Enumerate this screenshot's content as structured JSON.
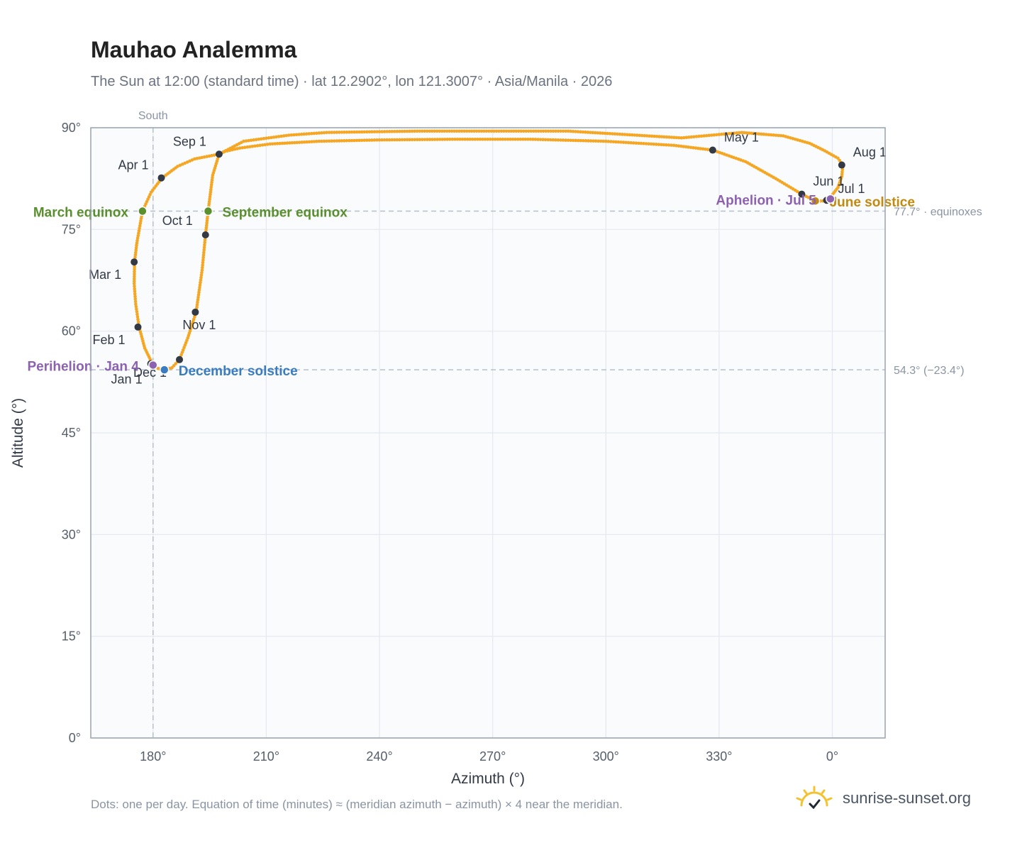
{
  "title": "Mauhao Analemma",
  "subtitle": "The Sun at 12:00 (standard time) · lat 12.2902°, lon 121.3007° · Asia/Manila · 2026",
  "footnote": "Dots: one per day. Equation of time (minutes) ≈ (meridian azimuth − azimuth) × 4 near the meridian.",
  "brand": {
    "name": "sunrise-sunset.org",
    "icon": "sun-logo-icon"
  },
  "colors": {
    "curve": "#f5a623",
    "month": "#333a45",
    "equinox": "#5a8f2e",
    "june": "#c28a0e",
    "december": "#3a7cc0",
    "apsis": "#8c62b0",
    "axis": "#555e6b",
    "grid": "#e5e8ee",
    "guide": "#b8c0cb",
    "plot_bg": "#f9fbfd",
    "frame": "#98a2b0"
  },
  "chart_data": {
    "type": "scatter",
    "xlabel": "Azimuth (°)",
    "ylabel": "Altitude (°)",
    "x_ticks": [
      {
        "az": 180,
        "label": "180°"
      },
      {
        "az": 210,
        "label": "210°"
      },
      {
        "az": 240,
        "label": "240°"
      },
      {
        "az": 270,
        "label": "270°"
      },
      {
        "az": 300,
        "label": "300°"
      },
      {
        "az": 330,
        "label": "330°"
      },
      {
        "az": 360,
        "label": "0°"
      }
    ],
    "y_ticks": [
      {
        "alt": 0,
        "label": "0°"
      },
      {
        "alt": 15,
        "label": "15°"
      },
      {
        "alt": 30,
        "label": "30°"
      },
      {
        "alt": 45,
        "label": "45°"
      },
      {
        "alt": 60,
        "label": "60°"
      },
      {
        "alt": 75,
        "label": "75°"
      },
      {
        "alt": 90,
        "label": "90°"
      }
    ],
    "xlim": [
      163.5,
      374
    ],
    "ylim": [
      0,
      90
    ],
    "grid": true,
    "meridian": {
      "az": 180,
      "label": "South"
    },
    "ref_lines": [
      {
        "alt": 77.7,
        "label": "77.7° · equinoxes"
      },
      {
        "alt": 54.3,
        "label": "54.3° (−23.4°)"
      }
    ],
    "curve_path": [
      {
        "az": 180.0,
        "alt": 55.0
      },
      {
        "az": 177.8,
        "alt": 57.5
      },
      {
        "az": 176.3,
        "alt": 60.6
      },
      {
        "az": 175.4,
        "alt": 64.0
      },
      {
        "az": 175.0,
        "alt": 67.0
      },
      {
        "az": 175.1,
        "alt": 70.2
      },
      {
        "az": 175.7,
        "alt": 73.0
      },
      {
        "az": 177.2,
        "alt": 77.7
      },
      {
        "az": 179.5,
        "alt": 80.5
      },
      {
        "az": 182.4,
        "alt": 82.6
      },
      {
        "az": 186.5,
        "alt": 84.3
      },
      {
        "az": 191.0,
        "alt": 85.4
      },
      {
        "az": 197.5,
        "alt": 86.1
      },
      {
        "az": 204.0,
        "alt": 88.0
      },
      {
        "az": 216.0,
        "alt": 88.9
      },
      {
        "az": 226.0,
        "alt": 89.3
      },
      {
        "az": 250.0,
        "alt": 89.5
      },
      {
        "az": 290.0,
        "alt": 89.5
      },
      {
        "az": 320.0,
        "alt": 88.5
      },
      {
        "az": 336.0,
        "alt": 89.3
      },
      {
        "az": 347.0,
        "alt": 88.8
      },
      {
        "az": 354.0,
        "alt": 87.7
      },
      {
        "az": 358.0,
        "alt": 86.6
      },
      {
        "az": 361.5,
        "alt": 85.5
      },
      {
        "az": 362.8,
        "alt": 84.5
      },
      {
        "az": 362.5,
        "alt": 82.8
      },
      {
        "az": 361.5,
        "alt": 81.2
      },
      {
        "az": 359.3,
        "alt": 79.6
      },
      {
        "az": 357.5,
        "alt": 79.2
      },
      {
        "az": 355.5,
        "alt": 79.2
      },
      {
        "az": 351.9,
        "alt": 80.2
      },
      {
        "az": 345.0,
        "alt": 82.5
      },
      {
        "az": 337.0,
        "alt": 85.0
      },
      {
        "az": 328.3,
        "alt": 86.7
      },
      {
        "az": 318.0,
        "alt": 87.4
      },
      {
        "az": 300.0,
        "alt": 88.0
      },
      {
        "az": 280.0,
        "alt": 88.3
      },
      {
        "az": 260.0,
        "alt": 88.3
      },
      {
        "az": 240.0,
        "alt": 88.2
      },
      {
        "az": 224.0,
        "alt": 88.0
      },
      {
        "az": 211.0,
        "alt": 87.6
      },
      {
        "az": 203.0,
        "alt": 87.0
      },
      {
        "az": 199.0,
        "alt": 86.5
      },
      {
        "az": 197.5,
        "alt": 86.1
      },
      {
        "az": 195.8,
        "alt": 83.0
      },
      {
        "az": 194.6,
        "alt": 77.7
      },
      {
        "az": 193.9,
        "alt": 74.2
      },
      {
        "az": 193.0,
        "alt": 69.0
      },
      {
        "az": 191.4,
        "alt": 62.8
      },
      {
        "az": 189.2,
        "alt": 59.0
      },
      {
        "az": 187.0,
        "alt": 55.8
      },
      {
        "az": 185.0,
        "alt": 54.6
      },
      {
        "az": 183.0,
        "alt": 54.3
      },
      {
        "az": 181.3,
        "alt": 54.5
      },
      {
        "az": 180.0,
        "alt": 55.0
      }
    ],
    "month_points": [
      {
        "label": "Jan 1",
        "az": 179.4,
        "alt": 55.2,
        "lx": -12,
        "ly": 28,
        "anchor": "end"
      },
      {
        "label": "Feb 1",
        "az": 176.0,
        "alt": 60.6,
        "lx": -18,
        "ly": 24,
        "anchor": "end"
      },
      {
        "label": "Mar 1",
        "az": 175.0,
        "alt": 70.2,
        "lx": -18,
        "ly": 24,
        "anchor": "end"
      },
      {
        "label": "Apr 1",
        "az": 182.2,
        "alt": 82.6,
        "lx": -18,
        "ly": -12,
        "anchor": "end"
      },
      {
        "label": "May 1",
        "az": 328.3,
        "alt": 86.7,
        "lx": 16,
        "ly": -12,
        "anchor": "start"
      },
      {
        "label": "Jun 1",
        "az": 351.9,
        "alt": 80.2,
        "lx": 16,
        "ly": -12,
        "anchor": "start"
      },
      {
        "label": "Jul 1",
        "az": 358.5,
        "alt": 79.3,
        "lx": 16,
        "ly": -10,
        "anchor": "start"
      },
      {
        "label": "Aug 1",
        "az": 362.5,
        "alt": 84.5,
        "lx": 16,
        "ly": -12,
        "anchor": "start"
      },
      {
        "label": "Sep 1",
        "az": 197.5,
        "alt": 86.1,
        "lx": -18,
        "ly": -12,
        "anchor": "end"
      },
      {
        "label": "Oct 1",
        "az": 193.9,
        "alt": 74.2,
        "lx": -18,
        "ly": -14,
        "anchor": "end"
      },
      {
        "label": "Nov 1",
        "az": 191.2,
        "alt": 62.8,
        "lx": -18,
        "ly": 24,
        "anchor": "start"
      },
      {
        "label": "Dec 1",
        "az": 187.0,
        "alt": 55.8,
        "lx": -18,
        "ly": 24,
        "anchor": "end"
      }
    ],
    "key_points": [
      {
        "label": "March equinox",
        "az": 177.2,
        "alt": 77.7,
        "color": "#5a8f2e",
        "lx": -20,
        "ly": 8,
        "anchor": "end",
        "bold": true
      },
      {
        "label": "September equinox",
        "az": 194.6,
        "alt": 77.7,
        "color": "#5a8f2e",
        "lx": 20,
        "ly": 8,
        "anchor": "start",
        "bold": true
      },
      {
        "label": "June solstice",
        "az": 355.5,
        "alt": 79.2,
        "color": "#c28a0e",
        "lx": 20,
        "ly": 8,
        "anchor": "start",
        "bold": true
      },
      {
        "label": "December solstice",
        "az": 183.0,
        "alt": 54.3,
        "color": "#3a7cc0",
        "lx": 20,
        "ly": 8,
        "anchor": "start",
        "bold": true
      },
      {
        "label": "Perihelion · Jan 4",
        "az": 180.0,
        "alt": 55.0,
        "color": "#8c62b0",
        "lx": -20,
        "ly": 8,
        "anchor": "end",
        "bold": true
      },
      {
        "label": "Aphelion · Jul 5",
        "az": 359.5,
        "alt": 79.5,
        "color": "#8c62b0",
        "lx": -20,
        "ly": 8,
        "anchor": "end",
        "bold": true
      }
    ]
  }
}
